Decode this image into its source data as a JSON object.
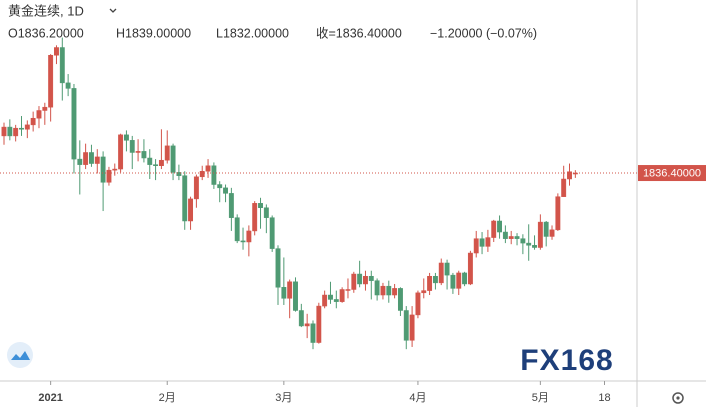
{
  "chart_data": {
    "type": "candlestick",
    "title": "黄金连续, 1D",
    "header": [
      "O1836.20000",
      "H1839.00000",
      "L1832.00000",
      "收=1836.40000",
      "−1.20000 (−0.07%)"
    ],
    "watermark": "FX168",
    "categories": [
      null,
      null,
      null,
      null,
      null,
      null,
      null,
      null,
      "2021",
      null,
      null,
      null,
      null,
      null,
      null,
      null,
      null,
      null,
      null,
      null,
      null,
      null,
      null,
      null,
      null,
      null,
      null,
      null,
      "2月",
      null,
      null,
      null,
      null,
      null,
      null,
      null,
      null,
      null,
      null,
      null,
      null,
      null,
      null,
      null,
      null,
      null,
      null,
      null,
      "3月",
      null,
      null,
      null,
      null,
      null,
      null,
      null,
      null,
      null,
      null,
      null,
      null,
      null,
      null,
      null,
      null,
      null,
      null,
      null,
      null,
      null,
      null,
      "4月",
      null,
      null,
      null,
      null,
      null,
      null,
      null,
      null,
      null,
      null,
      null,
      null,
      null,
      null,
      null,
      null,
      null,
      null,
      null,
      null,
      "5月",
      null,
      null,
      null,
      null,
      null,
      null,
      null,
      null,
      null,
      null,
      "18",
      null,
      null,
      null,
      null,
      null
    ],
    "open": [
      1870,
      1878,
      1870,
      1877,
      1876,
      1880,
      1886,
      1893,
      1896,
      1943,
      1950,
      1918,
      1913,
      1849,
      1844,
      1855,
      1845,
      1851,
      1828,
      1839,
      1840,
      1871,
      1866,
      1855,
      1856,
      1850,
      1844,
      1843,
      1848,
      1861,
      1837,
      1834,
      1793,
      1813,
      1833,
      1838,
      1843,
      1826,
      1823,
      1818,
      1796,
      1775,
      1774,
      1784,
      1809,
      1805,
      1796,
      1768,
      1733,
      1723,
      1738,
      1712,
      1698,
      1700,
      1683,
      1716,
      1726,
      1722,
      1720,
      1731,
      1731,
      1745,
      1736,
      1743,
      1739,
      1726,
      1734,
      1726,
      1732,
      1712,
      1685,
      1708,
      1728,
      1730,
      1743,
      1737,
      1755,
      1744,
      1732,
      1746,
      1736,
      1764,
      1777,
      1770,
      1778,
      1793,
      1783,
      1777,
      1779,
      1777,
      1773,
      1771,
      1769,
      1792,
      1779,
      1785,
      1815,
      1831,
      1836.2,
      null,
      null,
      null,
      null,
      null,
      null,
      null,
      null,
      null,
      null
    ],
    "high": [
      1882,
      1885,
      1880,
      1888,
      1884,
      1892,
      1897,
      1900,
      1944,
      1952,
      1959,
      1926,
      1917,
      1866,
      1863,
      1862,
      1858,
      1856,
      1842,
      1845,
      1872,
      1875,
      1870,
      1867,
      1867,
      1858,
      1849,
      1876,
      1875,
      1863,
      1844,
      1838,
      1815,
      1835,
      1843,
      1849,
      1846,
      1829,
      1826,
      1823,
      1799,
      1787,
      1789,
      1811,
      1814,
      1808,
      1798,
      1771,
      1760,
      1740,
      1742,
      1718,
      1709,
      1703,
      1719,
      1730,
      1738,
      1730,
      1733,
      1741,
      1747,
      1757,
      1748,
      1748,
      1741,
      1737,
      1739,
      1736,
      1733,
      1716,
      1716,
      1730,
      1741,
      1746,
      1746,
      1759,
      1758,
      1746,
      1748,
      1747,
      1766,
      1784,
      1783,
      1785,
      1794,
      1798,
      1789,
      1784,
      1782,
      1781,
      1790,
      1780,
      1799,
      1793,
      1789,
      1818,
      1843,
      1845,
      1839,
      null,
      null,
      null,
      null,
      null,
      null,
      null,
      null,
      null,
      null
    ],
    "low": [
      1862,
      1866,
      1865,
      1870,
      1868,
      1874,
      1877,
      1880,
      1883,
      1935,
      1902,
      1906,
      1836,
      1817,
      1840,
      1842,
      1836,
      1802,
      1825,
      1834,
      1837,
      1856,
      1840,
      1847,
      1846,
      1831,
      1830,
      1840,
      1845,
      1830,
      1830,
      1785,
      1785,
      1805,
      1830,
      1832,
      1822,
      1810,
      1810,
      1784,
      1773,
      1767,
      1761,
      1780,
      1786,
      1782,
      1765,
      1717,
      1717,
      1705,
      1711,
      1697,
      1687,
      1677,
      1682,
      1714,
      1718,
      1714,
      1719,
      1723,
      1728,
      1733,
      1730,
      1722,
      1721,
      1722,
      1719,
      1723,
      1707,
      1677,
      1679,
      1705,
      1723,
      1726,
      1731,
      1735,
      1731,
      1727,
      1726,
      1734,
      1735,
      1760,
      1763,
      1765,
      1774,
      1777,
      1773,
      1772,
      1771,
      1763,
      1757,
      1767,
      1767,
      1770,
      1776,
      1784,
      1815,
      1825,
      1832,
      null,
      null,
      null,
      null,
      null,
      null,
      null,
      null,
      null,
      null
    ],
    "close": [
      1878,
      1870,
      1877,
      1876,
      1880,
      1886,
      1893,
      1896,
      1943,
      1950,
      1918,
      1913,
      1849,
      1844,
      1855,
      1845,
      1851,
      1828,
      1839,
      1840,
      1871,
      1866,
      1855,
      1856,
      1850,
      1844,
      1843,
      1848,
      1861,
      1837,
      1834,
      1793,
      1813,
      1833,
      1838,
      1843,
      1826,
      1823,
      1818,
      1796,
      1775,
      1774,
      1784,
      1809,
      1805,
      1796,
      1768,
      1733,
      1723,
      1738,
      1712,
      1698,
      1700,
      1683,
      1716,
      1726,
      1722,
      1720,
      1731,
      1731,
      1745,
      1736,
      1743,
      1739,
      1726,
      1734,
      1726,
      1732,
      1712,
      1685,
      1708,
      1728,
      1730,
      1743,
      1737,
      1755,
      1744,
      1732,
      1746,
      1736,
      1764,
      1777,
      1770,
      1778,
      1793,
      1783,
      1777,
      1779,
      1777,
      1773,
      1771,
      1769,
      1792,
      1779,
      1785,
      1815,
      1831,
      1837.6,
      1836.4,
      null,
      null,
      null,
      null,
      null,
      null,
      null,
      null,
      null,
      null
    ],
    "up_color": "#d2544a",
    "down_color": "#4f9a73",
    "ylim": [
      1650,
      1993
    ],
    "last_price": 1836.4,
    "last_price_label": "1836.40000"
  }
}
